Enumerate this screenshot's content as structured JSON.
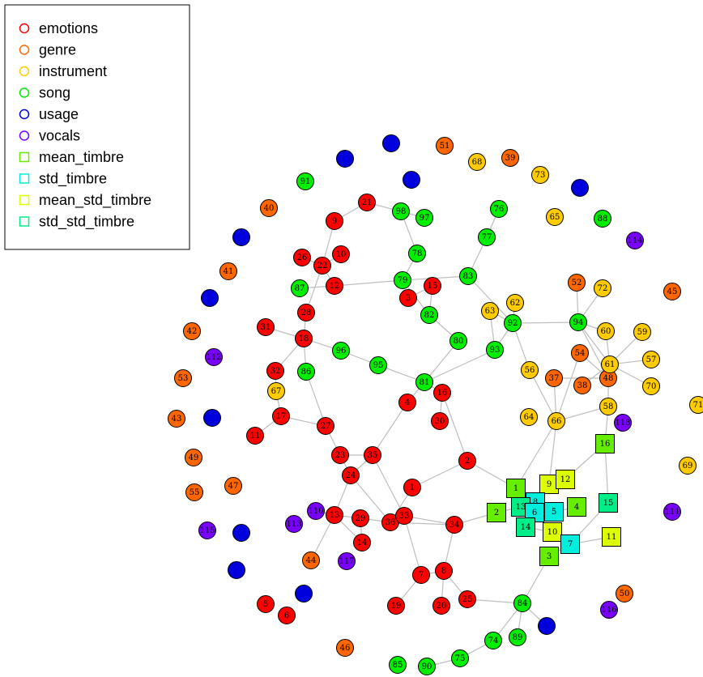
{
  "legend": [
    {
      "label": "emotions",
      "shape": "circle",
      "color": "#ff0000"
    },
    {
      "label": "genre",
      "shape": "circle",
      "color": "#ff6600"
    },
    {
      "label": "instrument",
      "shape": "circle",
      "color": "#ffcc00"
    },
    {
      "label": "song",
      "shape": "circle",
      "color": "#00ee00"
    },
    {
      "label": "usage",
      "shape": "circle",
      "color": "#0000dd"
    },
    {
      "label": "vocals",
      "shape": "circle",
      "color": "#7a00ff"
    },
    {
      "label": "mean_timbre",
      "shape": "square",
      "color": "#66ee00"
    },
    {
      "label": "std_timbre",
      "shape": "square",
      "color": "#00eedd"
    },
    {
      "label": "mean_std_timbre",
      "shape": "square",
      "color": "#ddff00"
    },
    {
      "label": "std_std_timbre",
      "shape": "square",
      "color": "#00ee88"
    }
  ]
}
